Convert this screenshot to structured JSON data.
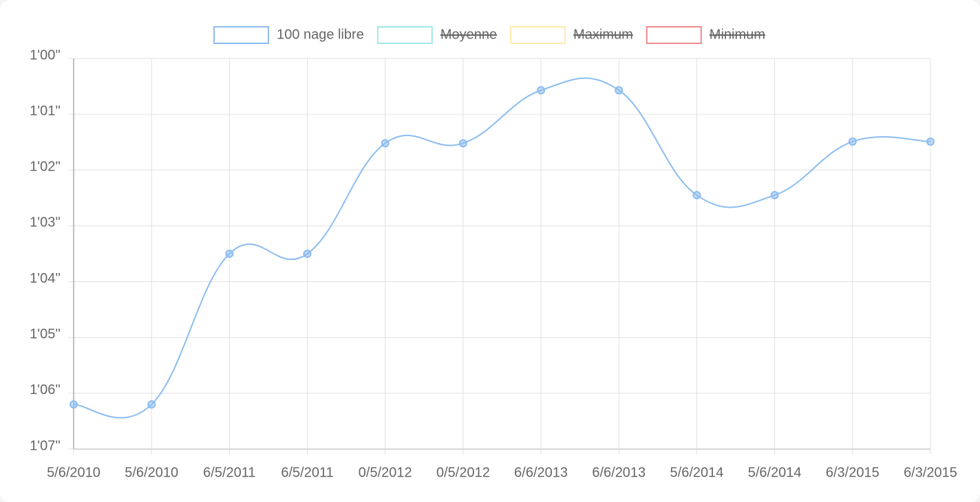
{
  "chart_data": {
    "type": "line",
    "categories": [
      "5/6/2010",
      "5/6/2010",
      "6/5/2011",
      "6/5/2011",
      "0/5/2012",
      "0/5/2012",
      "6/6/2013",
      "6/6/2013",
      "5/6/2014",
      "5/6/2014",
      "6/3/2015",
      "6/3/2015"
    ],
    "series": [
      {
        "name": "100 nage libre",
        "color": "#8bbcf0",
        "values": [
          66.2,
          66.2,
          63.5,
          63.5,
          61.52,
          61.52,
          60.57,
          60.57,
          62.45,
          62.45,
          61.49,
          61.49
        ]
      },
      {
        "name": "Moyenne",
        "color": "#a3e6e6",
        "hidden": true
      },
      {
        "name": "Maximum",
        "color": "#ffe9ad",
        "hidden": true
      },
      {
        "name": "Minimum",
        "color": "#ee8c8c",
        "hidden": true
      }
    ],
    "ylim": [
      60,
      67
    ],
    "y_inverted": true,
    "yticks": [
      {
        "value": 60,
        "label": "1'00''"
      },
      {
        "value": 61,
        "label": "1'01''"
      },
      {
        "value": 62,
        "label": "1'02''"
      },
      {
        "value": 63,
        "label": "1'03''"
      },
      {
        "value": 64,
        "label": "1'04''"
      },
      {
        "value": 65,
        "label": "1'05''"
      },
      {
        "value": 66,
        "label": "1'06''"
      },
      {
        "value": 67,
        "label": "1'07''"
      }
    ],
    "grid": true,
    "legend": "top"
  }
}
